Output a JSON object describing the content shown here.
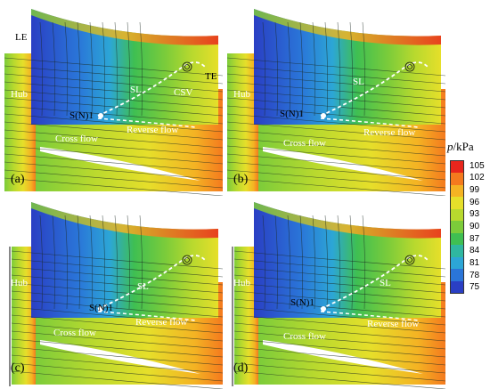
{
  "panels": [
    {
      "label": "(a)",
      "annotations": {
        "le": "LE",
        "te": "TE",
        "hub": "Hub",
        "sl": "SL",
        "csv": "CSV",
        "node": "S(N)1",
        "reverse": "Reverse flow",
        "cross": "Cross flow"
      }
    },
    {
      "label": "(b)",
      "annotations": {
        "hub": "Hub",
        "sl": "SL",
        "node": "S(N)1",
        "reverse": "Reverse flow",
        "cross": "Cross flow"
      }
    },
    {
      "label": "(c)",
      "annotations": {
        "hub": "Hub",
        "sl": "SL",
        "node": "S(N)1",
        "reverse": "Reverse flow",
        "cross": "Cross flow"
      }
    },
    {
      "label": "(d)",
      "annotations": {
        "hub": "Hub",
        "sl": "SL",
        "node": "S(N)1",
        "reverse": "Reverse flow",
        "cross": "Cross flow"
      }
    }
  ],
  "colorbar": {
    "title_var": "p",
    "title_unit": "/kPa",
    "ticks": [
      "105",
      "102",
      "99",
      "96",
      "93",
      "90",
      "87",
      "84",
      "81",
      "78",
      "75"
    ],
    "colors": [
      "#e8261c",
      "#f47a1e",
      "#f4b323",
      "#e6df2a",
      "#b8d92e",
      "#7ccc3a",
      "#3fbf52",
      "#2fb7a0",
      "#2ca6d6",
      "#2a75d8",
      "#2a3fc4"
    ]
  }
}
